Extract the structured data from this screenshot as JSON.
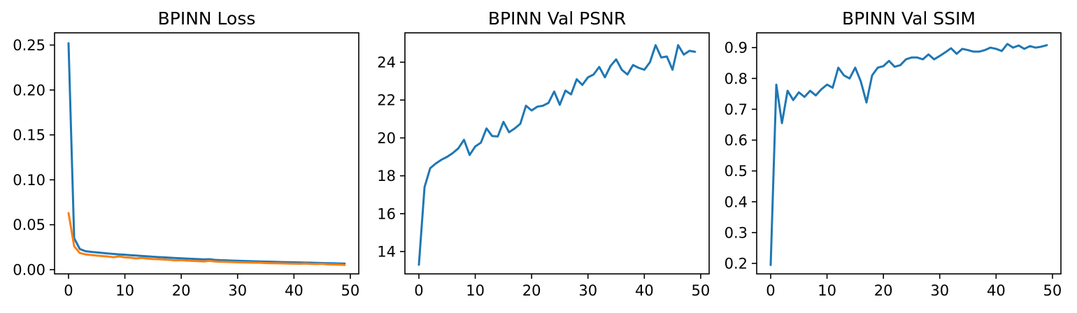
{
  "figure": {
    "background": "#ffffff",
    "text_color": "#000000",
    "spine_color": "#000000"
  },
  "chart_data": [
    {
      "type": "line",
      "title": "BPINN Loss",
      "xlabel": "",
      "ylabel": "",
      "grid": false,
      "legend": "none",
      "xlim": [
        -2.48,
        51.5
      ],
      "ylim": [
        -0.0047,
        0.2636
      ],
      "xticks": [
        0,
        10,
        20,
        30,
        40,
        50
      ],
      "xtick_labels": [
        "0",
        "10",
        "20",
        "30",
        "40",
        "50"
      ],
      "yticks": [
        0.0,
        0.05,
        0.1,
        0.15,
        0.2,
        0.25
      ],
      "ytick_labels": [
        "0.00",
        "0.05",
        "0.10",
        "0.15",
        "0.20",
        "0.25"
      ],
      "x": [
        0,
        1,
        2,
        3,
        4,
        5,
        6,
        7,
        8,
        9,
        10,
        11,
        12,
        13,
        14,
        15,
        16,
        17,
        18,
        19,
        20,
        21,
        22,
        23,
        24,
        25,
        26,
        27,
        28,
        29,
        30,
        31,
        32,
        33,
        34,
        35,
        36,
        37,
        38,
        39,
        40,
        41,
        42,
        43,
        44,
        45,
        46,
        47,
        48,
        49
      ],
      "series": [
        {
          "name": "series_1",
          "color": "#1f77b4",
          "values": [
            0.252,
            0.035,
            0.023,
            0.0206,
            0.0198,
            0.0192,
            0.0186,
            0.018,
            0.0175,
            0.017,
            0.0166,
            0.0161,
            0.0157,
            0.0152,
            0.0148,
            0.0144,
            0.014,
            0.0137,
            0.0133,
            0.0129,
            0.0126,
            0.0123,
            0.012,
            0.0117,
            0.0114,
            0.0116,
            0.0109,
            0.0106,
            0.0104,
            0.0101,
            0.0099,
            0.0097,
            0.0095,
            0.0093,
            0.0091,
            0.0089,
            0.0088,
            0.0086,
            0.0084,
            0.0083,
            0.0081,
            0.008,
            0.0078,
            0.0077,
            0.0075,
            0.0074,
            0.0072,
            0.0071,
            0.0069,
            0.0068
          ]
        },
        {
          "name": "series_2",
          "color": "#ff7f0e",
          "values": [
            0.063,
            0.026,
            0.0185,
            0.017,
            0.0163,
            0.0156,
            0.0151,
            0.0146,
            0.0139,
            0.0147,
            0.0137,
            0.0133,
            0.0125,
            0.0131,
            0.0123,
            0.0118,
            0.0116,
            0.0112,
            0.0109,
            0.0103,
            0.0106,
            0.0101,
            0.0098,
            0.0095,
            0.0091,
            0.0099,
            0.0091,
            0.0088,
            0.0086,
            0.0084,
            0.0082,
            0.008,
            0.0079,
            0.0077,
            0.0076,
            0.0074,
            0.0072,
            0.0071,
            0.007,
            0.0068,
            0.0067,
            0.0066,
            0.0068,
            0.0064,
            0.0063,
            0.0065,
            0.0059,
            0.0058,
            0.0056,
            0.0052
          ]
        }
      ]
    },
    {
      "type": "line",
      "title": "BPINN Val PSNR",
      "xlabel": "",
      "ylabel": "",
      "grid": false,
      "legend": "none",
      "xlim": [
        -2.48,
        51.5
      ],
      "ylim": [
        12.82,
        25.55
      ],
      "xticks": [
        0,
        10,
        20,
        30,
        40,
        50
      ],
      "xtick_labels": [
        "0",
        "10",
        "20",
        "30",
        "40",
        "50"
      ],
      "yticks": [
        14,
        16,
        18,
        20,
        22,
        24
      ],
      "ytick_labels": [
        "14",
        "16",
        "18",
        "20",
        "22",
        "24"
      ],
      "x": [
        0,
        1,
        2,
        3,
        4,
        5,
        6,
        7,
        8,
        9,
        10,
        11,
        12,
        13,
        14,
        15,
        16,
        17,
        18,
        19,
        20,
        21,
        22,
        23,
        24,
        25,
        26,
        27,
        28,
        29,
        30,
        31,
        32,
        33,
        34,
        35,
        36,
        37,
        38,
        39,
        40,
        41,
        42,
        43,
        44,
        45,
        46,
        47,
        48,
        49
      ],
      "series": [
        {
          "name": "series_1",
          "color": "#1f77b4",
          "values": [
            13.3,
            17.4,
            18.4,
            18.65,
            18.85,
            19.0,
            19.2,
            19.45,
            19.9,
            19.1,
            19.55,
            19.75,
            20.5,
            20.1,
            20.08,
            20.85,
            20.3,
            20.5,
            20.75,
            21.7,
            21.45,
            21.65,
            21.7,
            21.85,
            22.45,
            21.75,
            22.5,
            22.3,
            23.1,
            22.8,
            23.2,
            23.35,
            23.75,
            23.2,
            23.8,
            24.15,
            23.6,
            23.35,
            23.85,
            23.7,
            23.6,
            24.0,
            24.9,
            24.25,
            24.3,
            23.6,
            24.9,
            24.4,
            24.6,
            24.55
          ]
        }
      ]
    },
    {
      "type": "line",
      "title": "BPINN Val SSIM",
      "xlabel": "",
      "ylabel": "",
      "grid": false,
      "legend": "none",
      "xlim": [
        -2.48,
        51.5
      ],
      "ylim": [
        0.166,
        0.948
      ],
      "xticks": [
        0,
        10,
        20,
        30,
        40,
        50
      ],
      "xtick_labels": [
        "0",
        "10",
        "20",
        "30",
        "40",
        "50"
      ],
      "yticks": [
        0.2,
        0.3,
        0.4,
        0.5,
        0.6,
        0.7,
        0.8,
        0.9
      ],
      "ytick_labels": [
        "0.2",
        "0.3",
        "0.4",
        "0.5",
        "0.6",
        "0.7",
        "0.8",
        "0.9"
      ],
      "x": [
        0,
        1,
        2,
        3,
        4,
        5,
        6,
        7,
        8,
        9,
        10,
        11,
        12,
        13,
        14,
        15,
        16,
        17,
        18,
        19,
        20,
        21,
        22,
        23,
        24,
        25,
        26,
        27,
        28,
        29,
        30,
        31,
        32,
        33,
        34,
        35,
        36,
        37,
        38,
        39,
        40,
        41,
        42,
        43,
        44,
        45,
        46,
        47,
        48,
        49
      ],
      "series": [
        {
          "name": "series_1",
          "color": "#1f77b4",
          "values": [
            0.195,
            0.78,
            0.655,
            0.76,
            0.73,
            0.755,
            0.74,
            0.76,
            0.745,
            0.765,
            0.78,
            0.77,
            0.835,
            0.81,
            0.8,
            0.835,
            0.79,
            0.722,
            0.81,
            0.835,
            0.84,
            0.857,
            0.838,
            0.843,
            0.862,
            0.868,
            0.868,
            0.862,
            0.878,
            0.862,
            0.873,
            0.885,
            0.898,
            0.88,
            0.896,
            0.892,
            0.887,
            0.887,
            0.892,
            0.9,
            0.896,
            0.889,
            0.912,
            0.9,
            0.907,
            0.896,
            0.905,
            0.9,
            0.903,
            0.908
          ]
        }
      ]
    }
  ]
}
